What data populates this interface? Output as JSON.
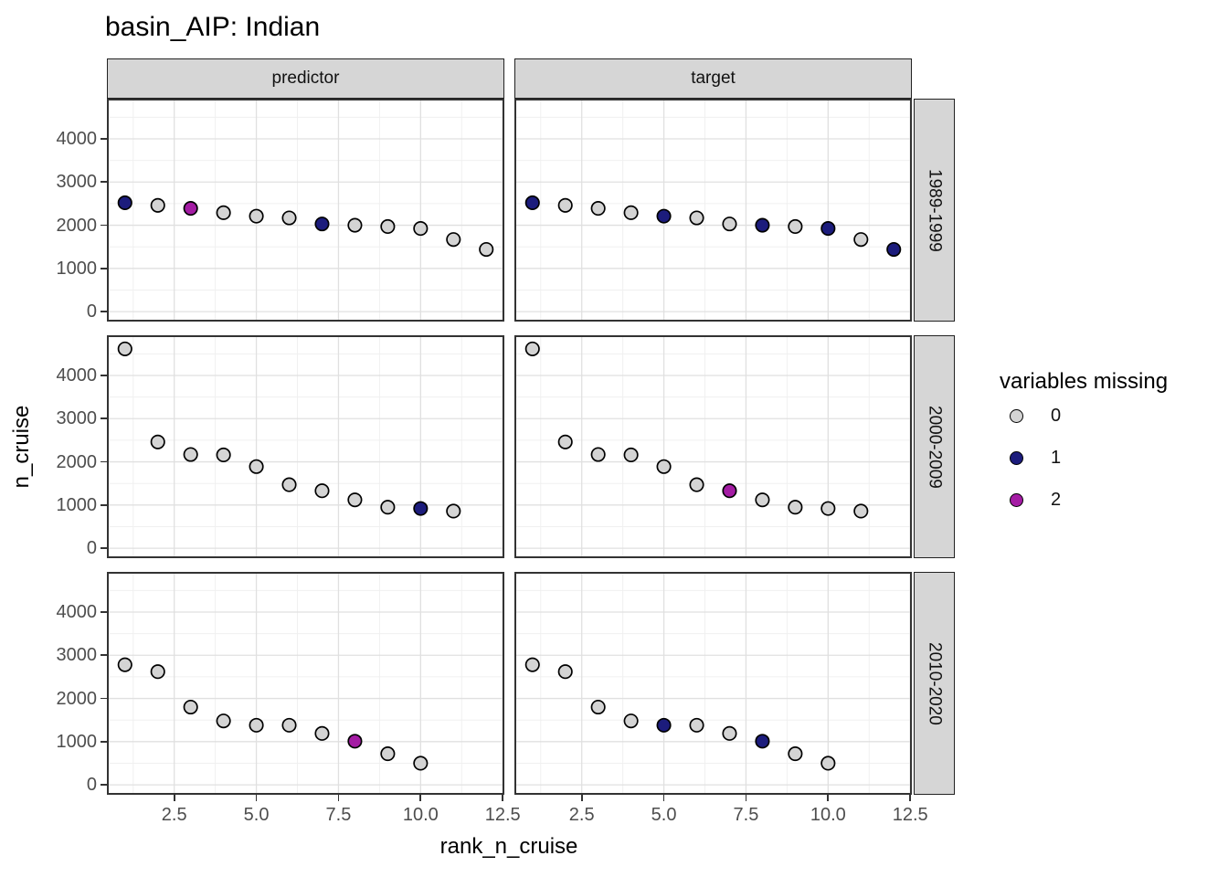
{
  "chart_data": {
    "type": "scatter",
    "title": "basin_AIP: Indian",
    "xlabel": "rank_n_cruise",
    "ylabel": "n_cruise",
    "facet_cols": [
      "predictor",
      "target"
    ],
    "facet_rows": [
      "1989-1999",
      "2000-2009",
      "2010-2020"
    ],
    "x_ticks": [
      "2.5",
      "5.0",
      "7.5",
      "10.0",
      "12.5"
    ],
    "x_tick_values": [
      2.5,
      5.0,
      7.5,
      10.0,
      12.5
    ],
    "y_ticks": [
      "0",
      "1000",
      "2000",
      "3000",
      "4000"
    ],
    "y_tick_values": [
      0,
      1000,
      2000,
      3000,
      4000
    ],
    "x_minor": [
      1.25,
      3.75,
      6.25,
      8.75,
      11.25
    ],
    "y_minor": [
      500,
      1500,
      2500,
      3500,
      4500
    ],
    "x_domain": [
      0.45,
      12.55
    ],
    "y_domain": [
      -230,
      4930
    ],
    "grid": true,
    "legend": {
      "title": "variables missing",
      "position": "right",
      "entries": [
        {
          "label": "0",
          "color": "#d4d4d4"
        },
        {
          "label": "1",
          "color": "#1c1c7c"
        },
        {
          "label": "2",
          "color": "#a41ca4"
        }
      ]
    },
    "point_stroke": "#000000",
    "colors": {
      "0": "#d4d4d4",
      "1": "#1c1c7c",
      "2": "#a41ca4"
    },
    "panels": [
      {
        "facet_col": "predictor",
        "facet_row": "1989-1999",
        "x": [
          1,
          2,
          3,
          4,
          5,
          6,
          7,
          8,
          9,
          10,
          11,
          12
        ],
        "y": [
          2520,
          2460,
          2390,
          2290,
          2210,
          2170,
          2030,
          2000,
          1970,
          1925,
          1670,
          1440
        ],
        "missing": [
          1,
          0,
          2,
          0,
          0,
          0,
          1,
          0,
          0,
          0,
          0,
          0
        ]
      },
      {
        "facet_col": "target",
        "facet_row": "1989-1999",
        "x": [
          1,
          2,
          3,
          4,
          5,
          6,
          7,
          8,
          9,
          10,
          11,
          12
        ],
        "y": [
          2520,
          2460,
          2390,
          2290,
          2210,
          2170,
          2030,
          2000,
          1970,
          1925,
          1670,
          1440
        ],
        "missing": [
          1,
          0,
          0,
          0,
          1,
          0,
          0,
          1,
          0,
          1,
          0,
          1
        ]
      },
      {
        "facet_col": "predictor",
        "facet_row": "2000-2009",
        "x": [
          1,
          2,
          3,
          4,
          5,
          6,
          7,
          8,
          9,
          10,
          11
        ],
        "y": [
          4615,
          2460,
          2170,
          2160,
          1890,
          1470,
          1330,
          1120,
          950,
          920,
          860
        ],
        "missing": [
          0,
          0,
          0,
          0,
          0,
          0,
          0,
          0,
          0,
          1,
          0
        ]
      },
      {
        "facet_col": "target",
        "facet_row": "2000-2009",
        "x": [
          1,
          2,
          3,
          4,
          5,
          6,
          7,
          8,
          9,
          10,
          11
        ],
        "y": [
          4615,
          2460,
          2170,
          2160,
          1890,
          1470,
          1330,
          1120,
          950,
          920,
          860
        ],
        "missing": [
          0,
          0,
          0,
          0,
          0,
          0,
          2,
          0,
          0,
          0,
          0
        ]
      },
      {
        "facet_col": "predictor",
        "facet_row": "2010-2020",
        "x": [
          1,
          2,
          3,
          4,
          5,
          6,
          7,
          8,
          9,
          10
        ],
        "y": [
          2780,
          2620,
          1800,
          1480,
          1380,
          1380,
          1190,
          1010,
          720,
          500
        ],
        "missing": [
          0,
          0,
          0,
          0,
          0,
          0,
          0,
          2,
          0,
          0
        ]
      },
      {
        "facet_col": "target",
        "facet_row": "2010-2020",
        "x": [
          1,
          2,
          3,
          4,
          5,
          6,
          7,
          8,
          9,
          10
        ],
        "y": [
          2780,
          2620,
          1800,
          1480,
          1380,
          1380,
          1190,
          1010,
          720,
          500
        ],
        "missing": [
          0,
          0,
          0,
          0,
          1,
          0,
          0,
          1,
          0,
          0
        ]
      }
    ]
  }
}
